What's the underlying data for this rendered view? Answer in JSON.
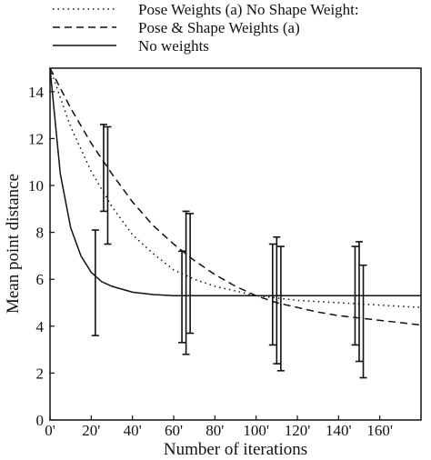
{
  "chart_data": {
    "type": "line",
    "xlabel": "Number of iterations",
    "ylabel": "Mean point distance",
    "xlim": [
      0,
      180
    ],
    "ylim": [
      0,
      15
    ],
    "x_tick_values": [
      0,
      20,
      40,
      60,
      80,
      100,
      120,
      140,
      160
    ],
    "x_tick_labels": [
      "0'",
      "20'",
      "40'",
      "60'",
      "80'",
      "100'",
      "120'",
      "140'",
      "160'"
    ],
    "y_tick_values": [
      0,
      2,
      4,
      6,
      8,
      10,
      12,
      14
    ],
    "y_tick_labels": [
      "0",
      "2",
      "4",
      "6",
      "8",
      "10",
      "12",
      "14"
    ],
    "grid": false,
    "legend_position": "top-outside",
    "series": [
      {
        "name": "Pose Weights (a) No Shape Weight:",
        "style": "dotted",
        "x": [
          0,
          10,
          20,
          30,
          40,
          50,
          60,
          70,
          80,
          90,
          100,
          110,
          120,
          130,
          140,
          150,
          160,
          170,
          180
        ],
        "y": [
          15.0,
          12.5,
          10.6,
          9.1,
          7.9,
          7.1,
          6.4,
          6.0,
          5.7,
          5.5,
          5.3,
          5.2,
          5.1,
          5.05,
          5.0,
          4.95,
          4.9,
          4.85,
          4.8
        ],
        "error_bars": [
          {
            "x": 28,
            "low": 7.5,
            "high": 12.5
          },
          {
            "x": 66,
            "low": 2.8,
            "high": 8.9
          },
          {
            "x": 110,
            "low": 2.4,
            "high": 7.8
          },
          {
            "x": 150,
            "low": 2.5,
            "high": 7.6
          }
        ]
      },
      {
        "name": "Pose & Shape Weights (a)",
        "style": "dashed",
        "x": [
          0,
          10,
          20,
          30,
          40,
          50,
          60,
          70,
          80,
          90,
          100,
          110,
          120,
          130,
          140,
          150,
          160,
          170,
          180
        ],
        "y": [
          15.0,
          13.3,
          11.8,
          10.5,
          9.3,
          8.3,
          7.5,
          6.8,
          6.2,
          5.7,
          5.3,
          5.0,
          4.8,
          4.6,
          4.45,
          4.35,
          4.25,
          4.15,
          4.05
        ],
        "error_bars": [
          {
            "x": 26,
            "low": 8.9,
            "high": 12.6
          },
          {
            "x": 68,
            "low": 3.7,
            "high": 8.8
          },
          {
            "x": 112,
            "low": 2.1,
            "high": 7.4
          },
          {
            "x": 152,
            "low": 1.8,
            "high": 6.6
          }
        ]
      },
      {
        "name": "No weights",
        "style": "solid",
        "x": [
          0,
          5,
          10,
          15,
          20,
          25,
          30,
          40,
          50,
          60,
          80,
          100,
          120,
          140,
          160,
          180
        ],
        "y": [
          15.0,
          10.5,
          8.2,
          7.0,
          6.3,
          5.9,
          5.7,
          5.45,
          5.35,
          5.3,
          5.3,
          5.3,
          5.3,
          5.3,
          5.3,
          5.3
        ],
        "error_bars": [
          {
            "x": 22,
            "low": 3.6,
            "high": 8.1
          },
          {
            "x": 64,
            "low": 3.3,
            "high": 7.2
          },
          {
            "x": 108,
            "low": 3.2,
            "high": 7.5
          },
          {
            "x": 148,
            "low": 3.2,
            "high": 7.4
          }
        ]
      }
    ]
  }
}
